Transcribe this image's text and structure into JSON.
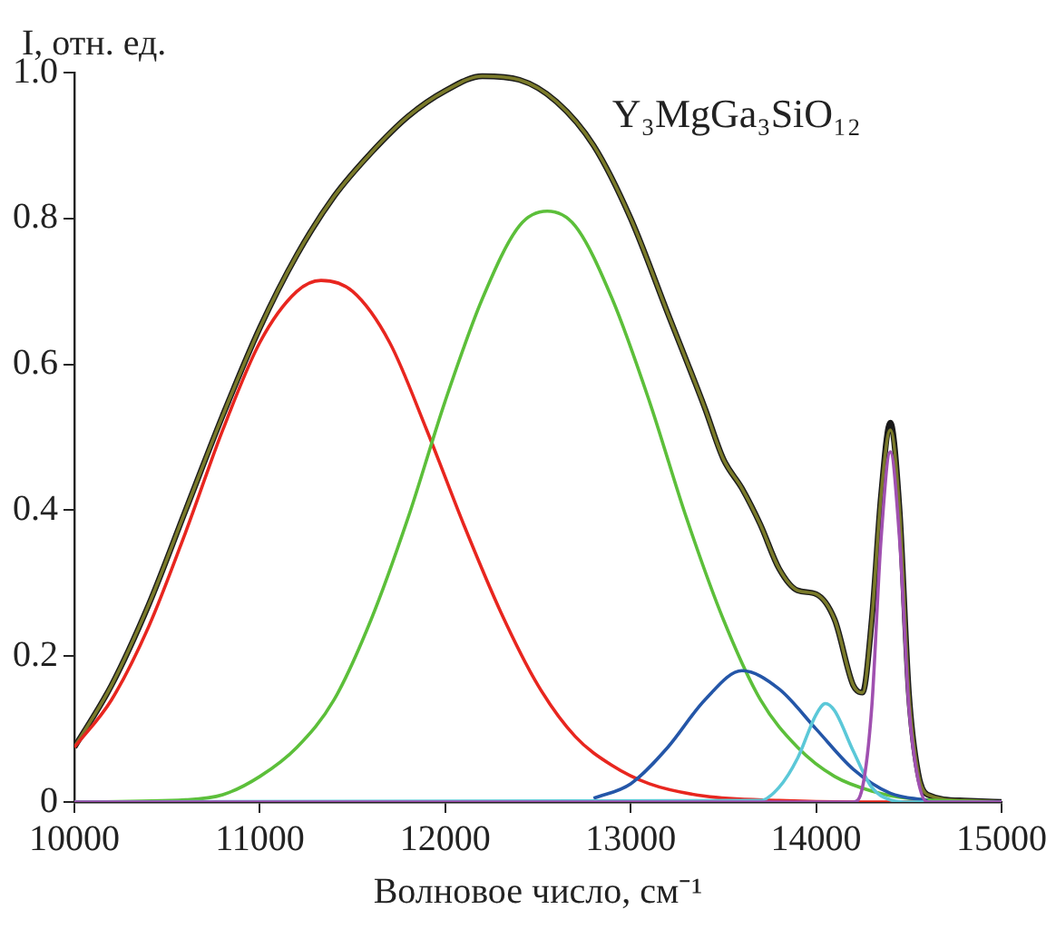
{
  "chart_data": {
    "type": "line",
    "xlabel": "Волновое число, см⁻¹",
    "ylabel": "I, отн. ед.",
    "annotations": [
      "Y₃MgGa₃SiO₁₂"
    ],
    "xlim": [
      10000,
      15000
    ],
    "xticks": [
      10000,
      11000,
      12000,
      13000,
      14000,
      15000
    ],
    "ylim": [
      0,
      1
    ],
    "yticks": [
      {
        "value": 0,
        "label": "0"
      },
      0.2,
      0.4,
      0.6,
      0.8,
      {
        "value": 1,
        "label": "1.0"
      }
    ],
    "grid": false,
    "legend": false,
    "marker": "none",
    "line_style": "solid",
    "series": [
      {
        "color": "#1a1a1a",
        "x": [
          10000,
          10200,
          10400,
          10600,
          10800,
          11000,
          11200,
          11400,
          11600,
          11800,
          12000,
          12200,
          12400,
          12600,
          12800,
          13000,
          13200,
          13400,
          13500,
          13600,
          13700,
          13800,
          13900,
          14000,
          14100,
          14200,
          14250,
          14300,
          14350,
          14400,
          14450,
          14500,
          14550,
          14600,
          14800,
          15000
        ],
        "values": [
          0.075,
          0.16,
          0.27,
          0.4,
          0.53,
          0.65,
          0.75,
          0.83,
          0.89,
          0.94,
          0.975,
          0.995,
          0.99,
          0.96,
          0.9,
          0.8,
          0.67,
          0.54,
          0.47,
          0.43,
          0.38,
          0.32,
          0.29,
          0.285,
          0.25,
          0.16,
          0.15,
          0.25,
          0.42,
          0.52,
          0.4,
          0.15,
          0.04,
          0.01,
          0.002,
          0
        ]
      },
      {
        "color": "#7a7a2a",
        "x": [
          10000,
          10200,
          10400,
          10600,
          10800,
          11000,
          11200,
          11400,
          11600,
          11800,
          12000,
          12200,
          12400,
          12600,
          12800,
          13000,
          13200,
          13400,
          13500,
          13600,
          13700,
          13800,
          13900,
          14000,
          14100,
          14200,
          14250,
          14300,
          14350,
          14400,
          14450,
          14500,
          14550,
          14600,
          14800,
          15000
        ],
        "values": [
          0.075,
          0.16,
          0.27,
          0.4,
          0.53,
          0.65,
          0.75,
          0.83,
          0.89,
          0.94,
          0.975,
          0.995,
          0.99,
          0.96,
          0.9,
          0.8,
          0.67,
          0.54,
          0.47,
          0.43,
          0.38,
          0.32,
          0.29,
          0.285,
          0.25,
          0.16,
          0.15,
          0.25,
          0.42,
          0.51,
          0.4,
          0.15,
          0.04,
          0.01,
          0.002,
          0
        ]
      },
      {
        "color": "#e8261f",
        "x": [
          10000,
          10200,
          10400,
          10600,
          10800,
          11000,
          11200,
          11330,
          11500,
          11700,
          11900,
          12100,
          12300,
          12500,
          12700,
          12900,
          13100,
          13400,
          13800,
          14200,
          15000
        ],
        "values": [
          0.075,
          0.14,
          0.24,
          0.37,
          0.51,
          0.63,
          0.7,
          0.715,
          0.7,
          0.63,
          0.51,
          0.38,
          0.26,
          0.16,
          0.09,
          0.05,
          0.025,
          0.008,
          0.002,
          0,
          0
        ]
      },
      {
        "color": "#5cbf3a",
        "x": [
          10000,
          10600,
          10800,
          11000,
          11200,
          11400,
          11600,
          11800,
          12000,
          12200,
          12400,
          12550,
          12700,
          12900,
          13100,
          13300,
          13500,
          13700,
          13900,
          14100,
          14300,
          14500,
          15000
        ],
        "values": [
          0,
          0.003,
          0.01,
          0.035,
          0.075,
          0.14,
          0.25,
          0.39,
          0.55,
          0.69,
          0.79,
          0.81,
          0.79,
          0.69,
          0.55,
          0.39,
          0.25,
          0.14,
          0.075,
          0.035,
          0.015,
          0.005,
          0
        ]
      },
      {
        "color": "#2456a8",
        "x": [
          12800,
          13000,
          13200,
          13400,
          13600,
          13800,
          14000,
          14200,
          14400,
          14600
        ],
        "values": [
          0.005,
          0.025,
          0.075,
          0.14,
          0.18,
          0.155,
          0.1,
          0.045,
          0.012,
          0.002
        ]
      },
      {
        "color": "#5bc8d8",
        "x": [
          10000,
          13700,
          13800,
          13900,
          14000,
          14050,
          14100,
          14200,
          14300,
          14400,
          14500,
          15000
        ],
        "values": [
          0,
          0.002,
          0.02,
          0.06,
          0.12,
          0.135,
          0.125,
          0.07,
          0.02,
          0.003,
          0,
          0
        ]
      },
      {
        "color": "#a050b0",
        "x": [
          10000,
          14200,
          14250,
          14300,
          14350,
          14400,
          14450,
          14500,
          14550,
          14600,
          15000
        ],
        "values": [
          0,
          0,
          0.02,
          0.13,
          0.36,
          0.48,
          0.36,
          0.13,
          0.03,
          0,
          0
        ]
      }
    ]
  }
}
